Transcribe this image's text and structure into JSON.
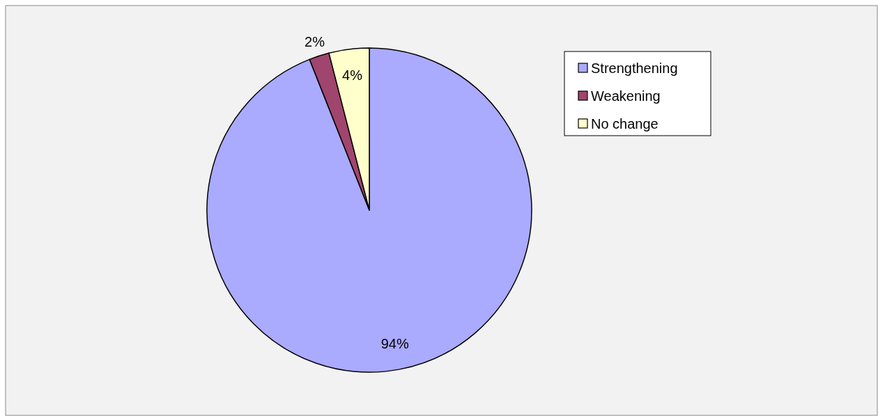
{
  "chart_data": {
    "type": "pie",
    "categories": [
      "Strengthening",
      "Weakening",
      "No change"
    ],
    "values": [
      94,
      2,
      4
    ],
    "colors": [
      "#aaaaff",
      "#a0456e",
      "#ffffcc"
    ],
    "value_labels": [
      "94%",
      "2%",
      "4%"
    ],
    "legend": "top right"
  }
}
